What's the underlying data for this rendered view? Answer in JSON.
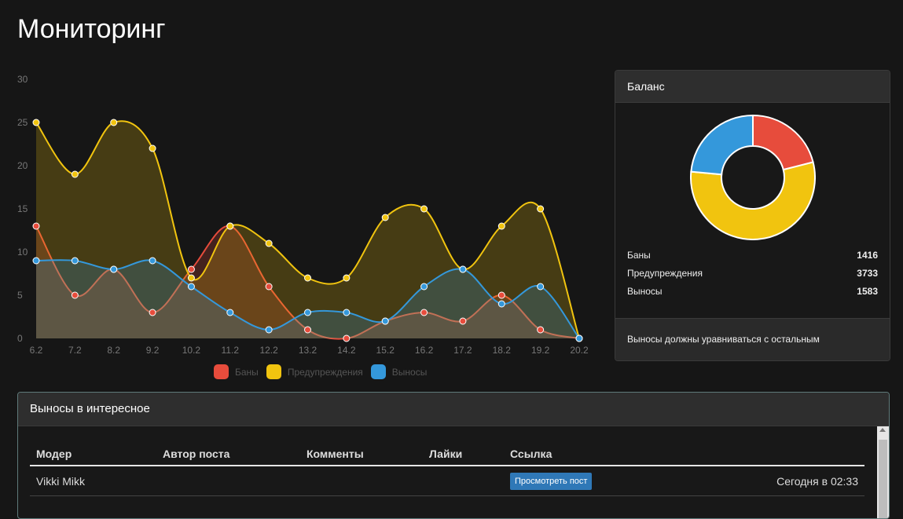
{
  "page": {
    "title": "Мониторинг"
  },
  "chart_data": {
    "type": "line",
    "categories": [
      "6.2",
      "7.2",
      "8.2",
      "9.2",
      "10.2",
      "11.2",
      "12.2",
      "13.2",
      "14.2",
      "15.2",
      "16.2",
      "17.2",
      "18.2",
      "19.2",
      "20.2"
    ],
    "y_ticks": [
      "0",
      "5",
      "10",
      "15",
      "20",
      "25",
      "30"
    ],
    "ylim": [
      0,
      30
    ],
    "series": [
      {
        "name": "Баны",
        "color": "#e74c3c",
        "values": [
          13,
          5,
          8,
          3,
          8,
          13,
          6,
          1,
          0,
          2,
          3,
          2,
          5,
          1,
          0
        ]
      },
      {
        "name": "Предупреждения",
        "color": "#f1c40f",
        "values": [
          25,
          19,
          25,
          22,
          7,
          13,
          11,
          7,
          7,
          14,
          15,
          8,
          13,
          15,
          0
        ]
      },
      {
        "name": "Выносы",
        "color": "#3498db",
        "values": [
          9,
          9,
          8,
          9,
          6,
          3,
          1,
          3,
          3,
          2,
          6,
          8,
          4,
          6,
          0
        ]
      }
    ]
  },
  "legend": {
    "items": [
      {
        "label": "Баны",
        "color": "#e74c3c"
      },
      {
        "label": "Предупреждения",
        "color": "#f1c40f"
      },
      {
        "label": "Выносы",
        "color": "#3498db"
      }
    ]
  },
  "balance": {
    "title": "Баланс",
    "donut": [
      {
        "label": "Баны",
        "value": 1416,
        "color": "#e74c3c"
      },
      {
        "label": "Предупреждения",
        "value": 3733,
        "color": "#f1c40f"
      },
      {
        "label": "Выносы",
        "value": 1583,
        "color": "#3498db"
      }
    ],
    "rows": [
      {
        "label": "Баны",
        "value": "1416"
      },
      {
        "label": "Предупреждения",
        "value": "3733"
      },
      {
        "label": "Выносы",
        "value": "1583"
      }
    ],
    "footer": "Выносы должны уравниваться с остальным"
  },
  "featured": {
    "title": "Выносы в интересное",
    "columns": [
      "Модер",
      "Автор поста",
      "Комменты",
      "Лайки",
      "Ссылка"
    ],
    "rows": [
      {
        "moder": "Vikki Mikk",
        "author": "",
        "comments": "",
        "likes": "",
        "link": "Просмотреть пост",
        "time": "Сегодня в 02:33"
      }
    ]
  }
}
